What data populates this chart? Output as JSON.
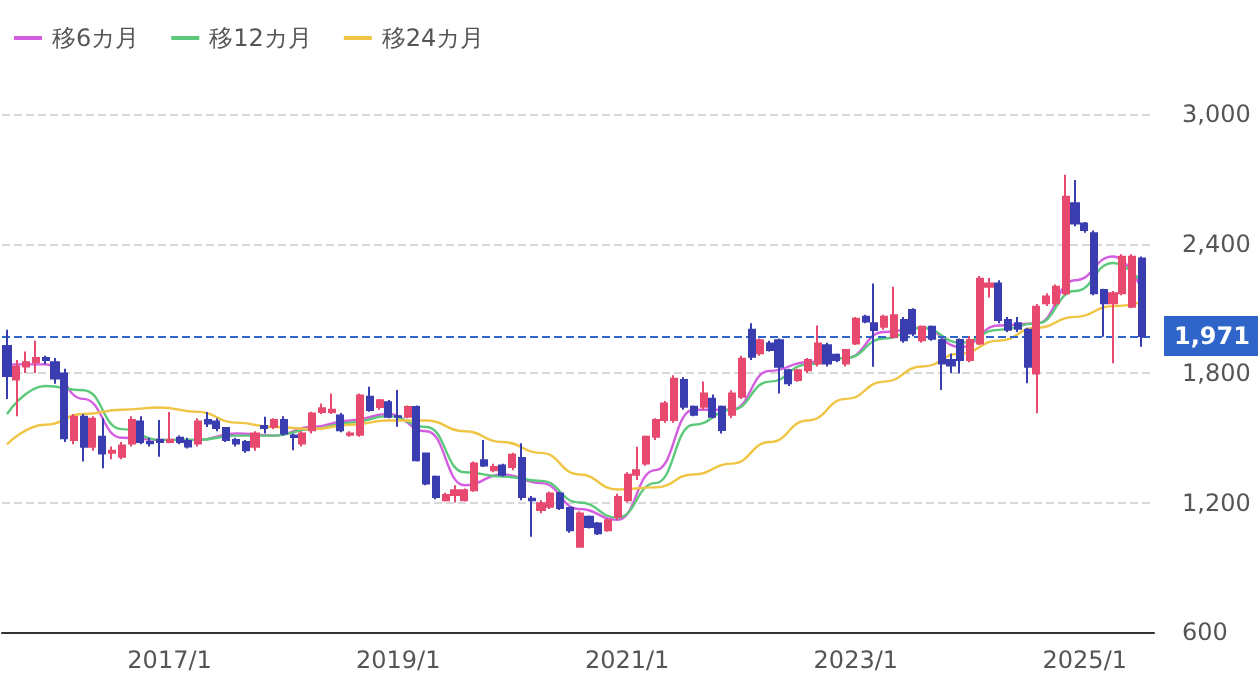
{
  "chart_data": {
    "type": "candlestick",
    "legend": "top left",
    "grid": "y",
    "marker": "none",
    "line_style": "solid",
    "x": [
      "2015-08",
      "2015-09",
      "2015-10",
      "2015-11",
      "2015-12",
      "2016-01",
      "2016-02",
      "2016-03",
      "2016-04",
      "2016-05",
      "2016-06",
      "2016-07",
      "2016-08",
      "2016-09",
      "2016-10",
      "2016-11",
      "2016-12",
      "2017-01",
      "2017-02",
      "2017-03",
      "2017-04",
      "2017-05",
      "2017-06",
      "2017-07",
      "2017-08",
      "2017-09",
      "2017-10",
      "2017-11",
      "2017-12",
      "2018-01",
      "2018-02",
      "2018-03",
      "2018-04",
      "2018-05",
      "2018-06",
      "2018-07",
      "2018-08",
      "2018-09",
      "2018-10",
      "2018-11",
      "2018-12",
      "2019-01",
      "2019-02",
      "2019-03",
      "2019-04",
      "2019-05",
      "2019-06",
      "2019-07",
      "2019-08",
      "2019-09",
      "2019-10",
      "2019-11",
      "2019-12",
      "2020-01",
      "2020-02",
      "2020-03",
      "2020-04",
      "2020-05",
      "2020-06",
      "2020-07",
      "2020-08",
      "2020-09",
      "2020-10",
      "2020-11",
      "2020-12",
      "2021-01",
      "2021-02",
      "2021-03",
      "2021-04",
      "2021-05",
      "2021-06",
      "2021-07",
      "2021-08",
      "2021-09",
      "2021-10",
      "2021-11",
      "2021-12",
      "2022-01",
      "2022-02",
      "2022-03",
      "2022-04",
      "2022-05",
      "2022-06",
      "2022-07",
      "2022-08",
      "2022-09",
      "2022-10",
      "2022-11",
      "2022-12",
      "2023-01",
      "2023-02",
      "2023-03",
      "2023-04",
      "2023-05",
      "2023-06",
      "2023-07",
      "2023-08",
      "2023-09",
      "2023-10",
      "2023-11",
      "2023-12",
      "2024-01",
      "2024-02",
      "2024-03",
      "2024-04",
      "2024-05",
      "2024-06",
      "2024-07",
      "2024-08",
      "2024-09",
      "2024-10",
      "2024-11",
      "2024-12",
      "2025-01",
      "2025-02",
      "2025-03",
      "2025-04",
      "2025-05",
      "2025-06",
      "2025-07"
    ],
    "ohlc": [
      [
        1925,
        2000,
        1680,
        1786
      ],
      [
        1770,
        1860,
        1600,
        1830
      ],
      [
        1830,
        1900,
        1800,
        1850
      ],
      [
        1850,
        1950,
        1800,
        1870
      ],
      [
        1870,
        1880,
        1840,
        1860
      ],
      [
        1850,
        1870,
        1750,
        1775
      ],
      [
        1798,
        1820,
        1480,
        1498
      ],
      [
        1489,
        1610,
        1470,
        1597
      ],
      [
        1597,
        1610,
        1390,
        1458
      ],
      [
        1458,
        1600,
        1440,
        1588
      ],
      [
        1505,
        1590,
        1359,
        1427
      ],
      [
        1430,
        1460,
        1400,
        1440
      ],
      [
        1412,
        1480,
        1400,
        1464
      ],
      [
        1473,
        1600,
        1460,
        1582
      ],
      [
        1575,
        1600,
        1470,
        1480
      ],
      [
        1480,
        1500,
        1460,
        1475
      ],
      [
        1490,
        1582,
        1412,
        1480
      ],
      [
        1480,
        1619,
        1475,
        1490
      ],
      [
        1500,
        1510,
        1470,
        1480
      ],
      [
        1485,
        1500,
        1450,
        1460
      ],
      [
        1473,
        1590,
        1460,
        1575
      ],
      [
        1582,
        1619,
        1550,
        1566
      ],
      [
        1575,
        1590,
        1530,
        1545
      ],
      [
        1545,
        1550,
        1480,
        1489
      ],
      [
        1489,
        1500,
        1460,
        1473
      ],
      [
        1480,
        1490,
        1430,
        1442
      ],
      [
        1458,
        1530,
        1440,
        1520
      ],
      [
        1555,
        1597,
        1520,
        1545
      ],
      [
        1551,
        1590,
        1540,
        1582
      ],
      [
        1582,
        1600,
        1510,
        1520
      ],
      [
        1510,
        1520,
        1442,
        1504
      ],
      [
        1473,
        1530,
        1460,
        1520
      ],
      [
        1535,
        1620,
        1520,
        1612
      ],
      [
        1619,
        1659,
        1610,
        1637
      ],
      [
        1619,
        1705,
        1610,
        1630
      ],
      [
        1603,
        1615,
        1525,
        1535
      ],
      [
        1514,
        1530,
        1505,
        1520
      ],
      [
        1514,
        1705,
        1505,
        1696
      ],
      [
        1690,
        1736,
        1620,
        1628
      ],
      [
        1643,
        1680,
        1630,
        1674
      ],
      [
        1665,
        1675,
        1590,
        1597
      ],
      [
        1600,
        1721,
        1551,
        1597
      ],
      [
        1597,
        1650,
        1590,
        1643
      ],
      [
        1643,
        1650,
        1390,
        1396
      ],
      [
        1427,
        1430,
        1280,
        1288
      ],
      [
        1319,
        1325,
        1215,
        1226
      ],
      [
        1211,
        1245,
        1205,
        1235
      ],
      [
        1235,
        1280,
        1200,
        1257
      ],
      [
        1211,
        1265,
        1205,
        1257
      ],
      [
        1257,
        1390,
        1250,
        1381
      ],
      [
        1396,
        1489,
        1365,
        1372
      ],
      [
        1350,
        1380,
        1340,
        1365
      ],
      [
        1372,
        1380,
        1320,
        1328
      ],
      [
        1365,
        1430,
        1350,
        1421
      ],
      [
        1406,
        1474,
        1210,
        1226
      ],
      [
        1217,
        1230,
        1041,
        1211
      ],
      [
        1165,
        1210,
        1150,
        1196
      ],
      [
        1180,
        1250,
        1170,
        1242
      ],
      [
        1242,
        1250,
        1165,
        1174
      ],
      [
        1174,
        1180,
        1060,
        1072
      ],
      [
        995,
        1160,
        990,
        1149
      ],
      [
        1134,
        1140,
        1080,
        1087
      ],
      [
        1103,
        1110,
        1050,
        1057
      ],
      [
        1072,
        1125,
        1065,
        1118
      ],
      [
        1134,
        1240,
        1120,
        1226
      ],
      [
        1211,
        1340,
        1200,
        1328
      ],
      [
        1328,
        1458,
        1304,
        1350
      ],
      [
        1381,
        1510,
        1370,
        1505
      ],
      [
        1505,
        1590,
        1490,
        1582
      ],
      [
        1582,
        1670,
        1570,
        1659
      ],
      [
        1582,
        1790,
        1570,
        1773
      ],
      [
        1767,
        1780,
        1630,
        1644
      ],
      [
        1644,
        1650,
        1600,
        1607
      ],
      [
        1644,
        1761,
        1630,
        1705
      ],
      [
        1681,
        1700,
        1590,
        1597
      ],
      [
        1644,
        1650,
        1520,
        1536
      ],
      [
        1606,
        1720,
        1590,
        1705
      ],
      [
        1690,
        1880,
        1680,
        1866
      ],
      [
        2000,
        2030,
        1860,
        1875
      ],
      [
        1891,
        1960,
        1880,
        1952
      ],
      [
        1937,
        1950,
        1900,
        1906
      ],
      [
        1952,
        1960,
        1705,
        1829
      ],
      [
        1813,
        1820,
        1740,
        1752
      ],
      [
        1767,
        1820,
        1760,
        1813
      ],
      [
        1813,
        1870,
        1800,
        1860
      ],
      [
        1844,
        2020,
        1830,
        1937
      ],
      [
        1928,
        1940,
        1830,
        1844
      ],
      [
        1885,
        1890,
        1850,
        1860
      ],
      [
        1844,
        1910,
        1830,
        1906
      ],
      [
        1937,
        2060,
        1930,
        2051
      ],
      [
        2061,
        2070,
        2030,
        2039
      ],
      [
        2030,
        2215,
        1829,
        1999
      ],
      [
        2014,
        2070,
        2000,
        2061
      ],
      [
        1968,
        2200,
        1960,
        2067
      ],
      [
        2045,
        2060,
        1940,
        1952
      ],
      [
        2092,
        2100,
        1970,
        1983
      ],
      [
        1952,
        2020,
        1940,
        2014
      ],
      [
        2014,
        2020,
        1950,
        1959
      ],
      [
        1952,
        1960,
        1721,
        1844
      ],
      [
        1860,
        1890,
        1800,
        1835
      ],
      [
        1953,
        1960,
        1798,
        1860
      ],
      [
        1860,
        1970,
        1850,
        1953
      ],
      [
        1937,
        2250,
        1930,
        2237
      ],
      [
        2200,
        2240,
        2150,
        2215
      ],
      [
        2215,
        2230,
        2030,
        2045
      ],
      [
        2045,
        2060,
        1990,
        2000
      ],
      [
        2030,
        2060,
        1990,
        2005
      ],
      [
        2000,
        2010,
        1752,
        1829
      ],
      [
        1798,
        2120,
        1613,
        2107
      ],
      [
        2123,
        2170,
        2110,
        2154
      ],
      [
        2123,
        2210,
        2110,
        2200
      ],
      [
        2169,
        2719,
        2160,
        2617
      ],
      [
        2586,
        2694,
        2480,
        2493
      ],
      [
        2493,
        2500,
        2450,
        2463
      ],
      [
        2447,
        2460,
        2160,
        2169
      ],
      [
        2184,
        2190,
        1968,
        2123
      ],
      [
        2123,
        2180,
        1845,
        2169
      ],
      [
        2169,
        2350,
        2160,
        2339
      ],
      [
        2107,
        2350,
        2100,
        2339
      ],
      [
        2330,
        2340,
        1922,
        1971
      ]
    ],
    "colors": [
      "#3a3db0",
      "#e8496e",
      "#e8496e",
      "#e8496e",
      "#3a3db0",
      "#3a3db0",
      "#3a3db0",
      "#e8496e",
      "#3a3db0",
      "#e8496e",
      "#3a3db0",
      "#e8496e",
      "#e8496e",
      "#e8496e",
      "#3a3db0",
      "#3a3db0",
      "#3a3db0",
      "#e8496e",
      "#3a3db0",
      "#3a3db0",
      "#e8496e",
      "#3a3db0",
      "#3a3db0",
      "#3a3db0",
      "#3a3db0",
      "#3a3db0",
      "#e8496e",
      "#3a3db0",
      "#e8496e",
      "#3a3db0",
      "#3a3db0",
      "#e8496e",
      "#e8496e",
      "#e8496e",
      "#e8496e",
      "#3a3db0",
      "#e8496e",
      "#e8496e",
      "#3a3db0",
      "#e8496e",
      "#3a3db0",
      "#3a3db0",
      "#e8496e",
      "#3a3db0",
      "#3a3db0",
      "#3a3db0",
      "#e8496e",
      "#e8496e",
      "#e8496e",
      "#e8496e",
      "#3a3db0",
      "#e8496e",
      "#3a3db0",
      "#e8496e",
      "#3a3db0",
      "#3a3db0",
      "#e8496e",
      "#e8496e",
      "#3a3db0",
      "#3a3db0",
      "#e8496e",
      "#3a3db0",
      "#3a3db0",
      "#e8496e",
      "#e8496e",
      "#e8496e",
      "#e8496e",
      "#e8496e",
      "#e8496e",
      "#e8496e",
      "#e8496e",
      "#3a3db0",
      "#3a3db0",
      "#e8496e",
      "#3a3db0",
      "#3a3db0",
      "#e8496e",
      "#e8496e",
      "#3a3db0",
      "#e8496e",
      "#3a3db0",
      "#3a3db0",
      "#3a3db0",
      "#e8496e",
      "#e8496e",
      "#e8496e",
      "#3a3db0",
      "#3a3db0",
      "#e8496e",
      "#e8496e",
      "#3a3db0",
      "#3a3db0",
      "#e8496e",
      "#e8496e",
      "#3a3db0",
      "#3a3db0",
      "#e8496e",
      "#3a3db0",
      "#3a3db0",
      "#3a3db0",
      "#3a3db0",
      "#e8496e",
      "#e8496e",
      "#e8496e",
      "#3a3db0",
      "#3a3db0",
      "#3a3db0",
      "#3a3db0",
      "#e8496e",
      "#e8496e",
      "#e8496e",
      "#e8496e",
      "#3a3db0",
      "#3a3db0",
      "#3a3db0",
      "#3a3db0",
      "#e8496e",
      "#e8496e",
      "#e8496e",
      "#3a3db0"
    ],
    "series": [
      {
        "name": "移6カ月",
        "type": "line",
        "color": "#d35fe0",
        "x": [
          "2015-08",
          "2015-12",
          "2016-04",
          "2016-08",
          "2016-12",
          "2017-04",
          "2017-08",
          "2017-12",
          "2018-04",
          "2018-08",
          "2018-12",
          "2019-04",
          "2019-08",
          "2019-12",
          "2020-04",
          "2020-08",
          "2020-12",
          "2021-04",
          "2021-08",
          "2021-12",
          "2022-04",
          "2022-08",
          "2022-12",
          "2023-04",
          "2023-08",
          "2023-12",
          "2024-04",
          "2024-08",
          "2024-12",
          "2025-04",
          "2025-07"
        ],
        "values": [
          1840,
          1840,
          1680,
          1500,
          1490,
          1490,
          1520,
          1510,
          1550,
          1580,
          1610,
          1530,
          1280,
          1330,
          1290,
          1170,
          1120,
          1350,
          1630,
          1630,
          1810,
          1850,
          1870,
          1990,
          2010,
          1920,
          2020,
          2030,
          2230,
          2340,
          2190
        ]
      },
      {
        "name": "移12カ月",
        "type": "line",
        "color": "#5cc97a",
        "x": [
          "2015-08",
          "2015-12",
          "2016-04",
          "2016-08",
          "2016-12",
          "2017-04",
          "2017-08",
          "2017-12",
          "2018-04",
          "2018-08",
          "2018-12",
          "2019-04",
          "2019-08",
          "2019-12",
          "2020-04",
          "2020-08",
          "2020-12",
          "2021-04",
          "2021-08",
          "2021-12",
          "2022-04",
          "2022-08",
          "2022-12",
          "2023-04",
          "2023-08",
          "2023-12",
          "2024-04",
          "2024-08",
          "2024-12",
          "2025-04",
          "2025-07"
        ],
        "values": [
          1610,
          1740,
          1720,
          1540,
          1490,
          1490,
          1510,
          1510,
          1540,
          1570,
          1600,
          1550,
          1340,
          1320,
          1300,
          1200,
          1130,
          1290,
          1560,
          1630,
          1760,
          1840,
          1870,
          1960,
          2010,
          1940,
          2000,
          2030,
          2180,
          2310,
          2220
        ]
      },
      {
        "name": "移24カ月",
        "type": "line",
        "color": "#f0c444",
        "x": [
          "2015-08",
          "2015-12",
          "2016-04",
          "2016-08",
          "2016-12",
          "2017-04",
          "2017-08",
          "2017-12",
          "2018-04",
          "2018-08",
          "2018-12",
          "2019-04",
          "2019-08",
          "2019-12",
          "2020-04",
          "2020-08",
          "2020-12",
          "2021-04",
          "2021-08",
          "2021-12",
          "2022-04",
          "2022-08",
          "2022-12",
          "2023-04",
          "2023-08",
          "2023-12",
          "2024-04",
          "2024-08",
          "2024-12",
          "2025-04",
          "2025-07"
        ],
        "values": [
          1470,
          1560,
          1610,
          1630,
          1640,
          1620,
          1570,
          1550,
          1540,
          1560,
          1580,
          1580,
          1530,
          1480,
          1430,
          1330,
          1260,
          1270,
          1330,
          1380,
          1480,
          1580,
          1680,
          1760,
          1830,
          1890,
          1950,
          2010,
          2060,
          2110,
          2130
        ]
      }
    ],
    "xlim": [
      "2015-07-16",
      "2025-08-10"
    ],
    "xticks": [
      {
        "value": "2017-01",
        "label": "2017/1"
      },
      {
        "value": "2019-01",
        "label": "2019/1"
      },
      {
        "value": "2021-01",
        "label": "2021/1"
      },
      {
        "value": "2023-01",
        "label": "2023/1"
      },
      {
        "value": "2025-01",
        "label": "2025/1"
      }
    ],
    "ylim": [
      600,
      3000
    ],
    "yticks": [
      600,
      {
        "value": 1200,
        "label": "1,200"
      },
      {
        "value": 1800,
        "label": "1,800"
      },
      {
        "value": 2400,
        "label": "2,400"
      },
      {
        "value": 3000,
        "label": "3,000"
      }
    ],
    "ref_lines": [
      {
        "axis": "y",
        "value": 1971,
        "label": "1,971",
        "color": "#2f64c8",
        "line_style": "dashed"
      }
    ]
  }
}
